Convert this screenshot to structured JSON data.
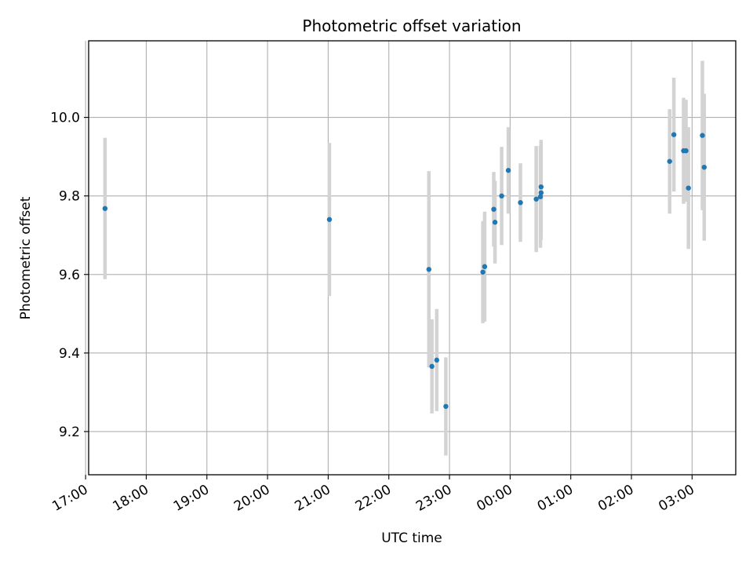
{
  "chart_data": {
    "type": "scatter",
    "title": "Photometric offset variation",
    "xlabel": "UTC time",
    "ylabel": "Photometric offset",
    "x_axis": "time (hours relative to 00:00 UTC; negative = previous evening)",
    "xlim": [
      -6.95,
      3.72
    ],
    "ylim": [
      9.09,
      10.195
    ],
    "xticks": [
      {
        "value": -7,
        "label": "17:00"
      },
      {
        "value": -6,
        "label": "18:00"
      },
      {
        "value": -5,
        "label": "19:00"
      },
      {
        "value": -4,
        "label": "20:00"
      },
      {
        "value": -3,
        "label": "21:00"
      },
      {
        "value": -2,
        "label": "22:00"
      },
      {
        "value": -1,
        "label": "23:00"
      },
      {
        "value": 0,
        "label": "00:00"
      },
      {
        "value": 1,
        "label": "01:00"
      },
      {
        "value": 2,
        "label": "02:00"
      },
      {
        "value": 3,
        "label": "03:00"
      }
    ],
    "yticks": [
      {
        "value": 9.2,
        "label": "9.2"
      },
      {
        "value": 9.4,
        "label": "9.4"
      },
      {
        "value": 9.6,
        "label": "9.6"
      },
      {
        "value": 9.8,
        "label": "9.8"
      },
      {
        "value": 10.0,
        "label": "10.0"
      }
    ],
    "grid": true,
    "colors": {
      "points": "#1f77b4",
      "errorbars": "#d3d3d3",
      "grid": "#b0b0b0"
    },
    "points": [
      {
        "x": -6.68,
        "y": 9.768,
        "err": 0.18
      },
      {
        "x": -2.98,
        "y": 9.74,
        "err": 0.195
      },
      {
        "x": -1.34,
        "y": 9.613,
        "err": 0.25
      },
      {
        "x": -1.29,
        "y": 9.366,
        "err": 0.12
      },
      {
        "x": -1.21,
        "y": 9.382,
        "err": 0.13
      },
      {
        "x": -1.06,
        "y": 9.264,
        "err": 0.125
      },
      {
        "x": -0.45,
        "y": 9.606,
        "err": 0.13
      },
      {
        "x": -0.42,
        "y": 9.62,
        "err": 0.14
      },
      {
        "x": -0.27,
        "y": 9.766,
        "err": 0.095
      },
      {
        "x": -0.25,
        "y": 9.733,
        "err": 0.105
      },
      {
        "x": -0.14,
        "y": 9.8,
        "err": 0.125
      },
      {
        "x": -0.03,
        "y": 9.865,
        "err": 0.11
      },
      {
        "x": 0.17,
        "y": 9.783,
        "err": 0.1
      },
      {
        "x": 0.43,
        "y": 9.792,
        "err": 0.135
      },
      {
        "x": 0.5,
        "y": 9.798,
        "err": 0.13
      },
      {
        "x": 0.51,
        "y": 9.808,
        "err": 0.12
      },
      {
        "x": 0.51,
        "y": 9.823,
        "err": 0.12
      },
      {
        "x": 2.63,
        "y": 9.888,
        "err": 0.133
      },
      {
        "x": 2.7,
        "y": 9.956,
        "err": 0.145
      },
      {
        "x": 2.86,
        "y": 9.915,
        "err": 0.135
      },
      {
        "x": 2.9,
        "y": 9.915,
        "err": 0.13
      },
      {
        "x": 2.94,
        "y": 9.82,
        "err": 0.155
      },
      {
        "x": 3.17,
        "y": 9.954,
        "err": 0.19
      },
      {
        "x": 3.2,
        "y": 9.873,
        "err": 0.187
      }
    ]
  }
}
